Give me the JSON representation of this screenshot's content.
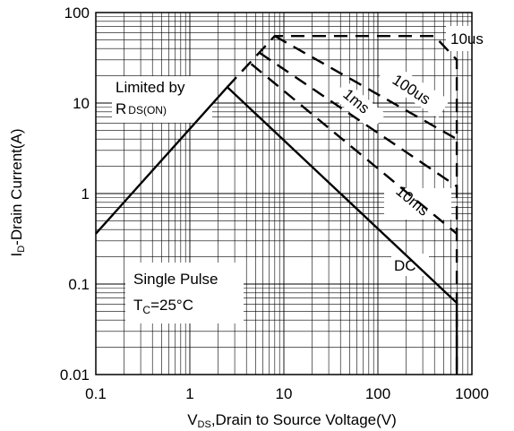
{
  "chart_data": {
    "type": "line",
    "x_scale": "log",
    "y_scale": "log",
    "xlim": [
      0.1,
      1000
    ],
    "ylim": [
      0.01,
      100
    ],
    "grid": true,
    "xlabel": {
      "main": "V",
      "sub": "DS",
      "rest": ",Drain to Source Voltage(V)"
    },
    "ylabel": {
      "main": "I",
      "sub": "D",
      "rest": "-Drain Current(A)"
    },
    "x_tick_labels": [
      "0.1",
      "1",
      "10",
      "100",
      "1000"
    ],
    "x_tick_values": [
      0.1,
      1,
      10,
      100,
      1000
    ],
    "y_tick_labels": [
      "0.01",
      "0.1",
      "1",
      "10",
      "100"
    ],
    "y_tick_values": [
      0.01,
      0.1,
      1,
      10,
      100
    ],
    "series": [
      {
        "name": "DC",
        "style": "solid",
        "points": [
          [
            0.1,
            0.36
          ],
          [
            2.5,
            15
          ],
          [
            690,
            0.062
          ],
          [
            690,
            0.01
          ]
        ]
      },
      {
        "name": "10us",
        "style": "dashed",
        "points": [
          [
            2.5,
            15
          ],
          [
            8,
            55
          ],
          [
            400,
            55
          ],
          [
            690,
            30
          ],
          [
            690,
            0.01
          ]
        ]
      },
      {
        "name": "100us",
        "style": "dashed",
        "points": [
          [
            8,
            55
          ],
          [
            690,
            4
          ]
        ]
      },
      {
        "name": "1ms",
        "style": "dashed",
        "points": [
          [
            5.5,
            36
          ],
          [
            690,
            1.2
          ]
        ]
      },
      {
        "name": "10ms",
        "style": "dashed",
        "points": [
          [
            4.5,
            27
          ],
          [
            690,
            0.36
          ]
        ]
      }
    ],
    "annotations": {
      "limited_line1": "Limited by",
      "limited_r": "R",
      "limited_sub": "DS(ON)",
      "single_pulse": "Single Pulse",
      "tc_main": "T",
      "tc_sub": "C",
      "tc_rest": "=25°C",
      "label_10us": "10us",
      "label_100us": "100us",
      "label_1ms": "1ms",
      "label_10ms": "10ms",
      "label_dc": "DC"
    }
  }
}
